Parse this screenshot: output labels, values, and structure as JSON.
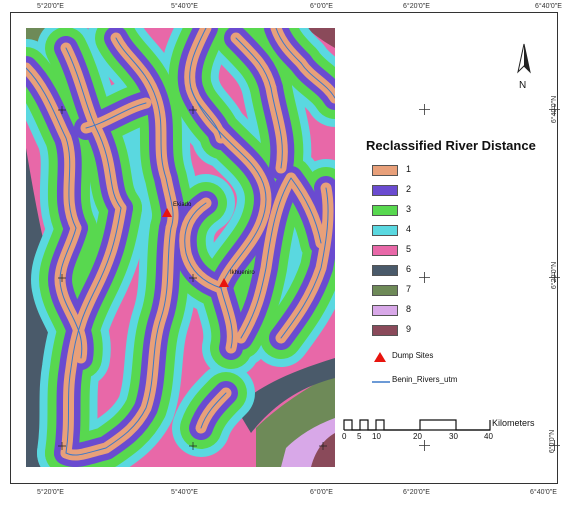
{
  "map": {
    "legend_title": "Reclassified River Distance",
    "classes": [
      {
        "label": "1",
        "color": "#e8a07a"
      },
      {
        "label": "2",
        "color": "#6a4bd0"
      },
      {
        "label": "3",
        "color": "#58d84f"
      },
      {
        "label": "4",
        "color": "#5ad8e0"
      },
      {
        "label": "5",
        "color": "#e868a8"
      },
      {
        "label": "6",
        "color": "#4a5a6a"
      },
      {
        "label": "7",
        "color": "#6e8a58"
      },
      {
        "label": "8",
        "color": "#d8a8e8"
      },
      {
        "label": "9",
        "color": "#8a4a5a"
      }
    ],
    "symbols": {
      "dump_sites": "Dump Sites",
      "rivers": "Benin_Rivers_utm"
    },
    "dump_site_labels": [
      "Ekiado",
      "Ikhueniro"
    ],
    "north": "N",
    "scale": {
      "unit": "Kilometers",
      "ticks": [
        "0",
        "5",
        "10",
        "20",
        "30",
        "40"
      ]
    },
    "lon_ticks": [
      "5°20'0\"E",
      "5°40'0\"E",
      "6°0'0\"E",
      "6°20'0\"E",
      "6°40'0\"E"
    ],
    "lat_ticks": [
      "6°40'0\"N",
      "6°20'0\"N",
      "6°0'0\"N"
    ]
  }
}
